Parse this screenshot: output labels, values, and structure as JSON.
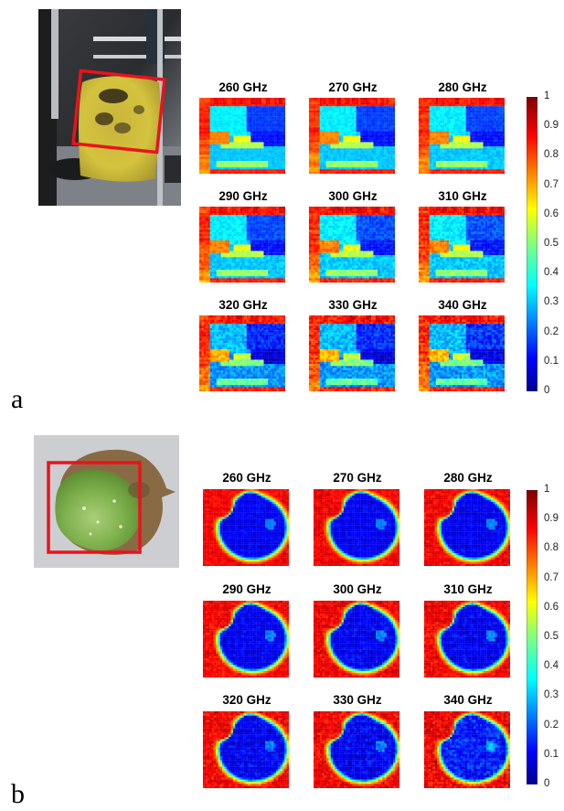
{
  "panels": [
    {
      "id": "a",
      "letter": "a",
      "photo_alt": "Photo of yellow leaf with dark spots clamped in a terahertz setup, region outlined by red box",
      "frequencies": [
        "260 GHz",
        "270 GHz",
        "280 GHz",
        "290 GHz",
        "300 GHz",
        "310 GHz",
        "320 GHz",
        "330 GHz",
        "340 GHz"
      ],
      "pattern": "leaf-a"
    },
    {
      "id": "b",
      "letter": "b",
      "photo_alt": "Photo of round green leaf with brown dry margin, region outlined by red box",
      "frequencies": [
        "260 GHz",
        "270 GHz",
        "280 GHz",
        "290 GHz",
        "300 GHz",
        "310 GHz",
        "320 GHz",
        "330 GHz",
        "340 GHz"
      ],
      "pattern": "leaf-b"
    }
  ],
  "colorbar": {
    "colormap": "jet",
    "ticks": [
      "1",
      "0.9",
      "0.8",
      "0.7",
      "0.6",
      "0.5",
      "0.4",
      "0.3",
      "0.2",
      "0.1",
      "0"
    ],
    "range": [
      0,
      1
    ]
  },
  "colors": {
    "roi_box": "#e8141b"
  }
}
